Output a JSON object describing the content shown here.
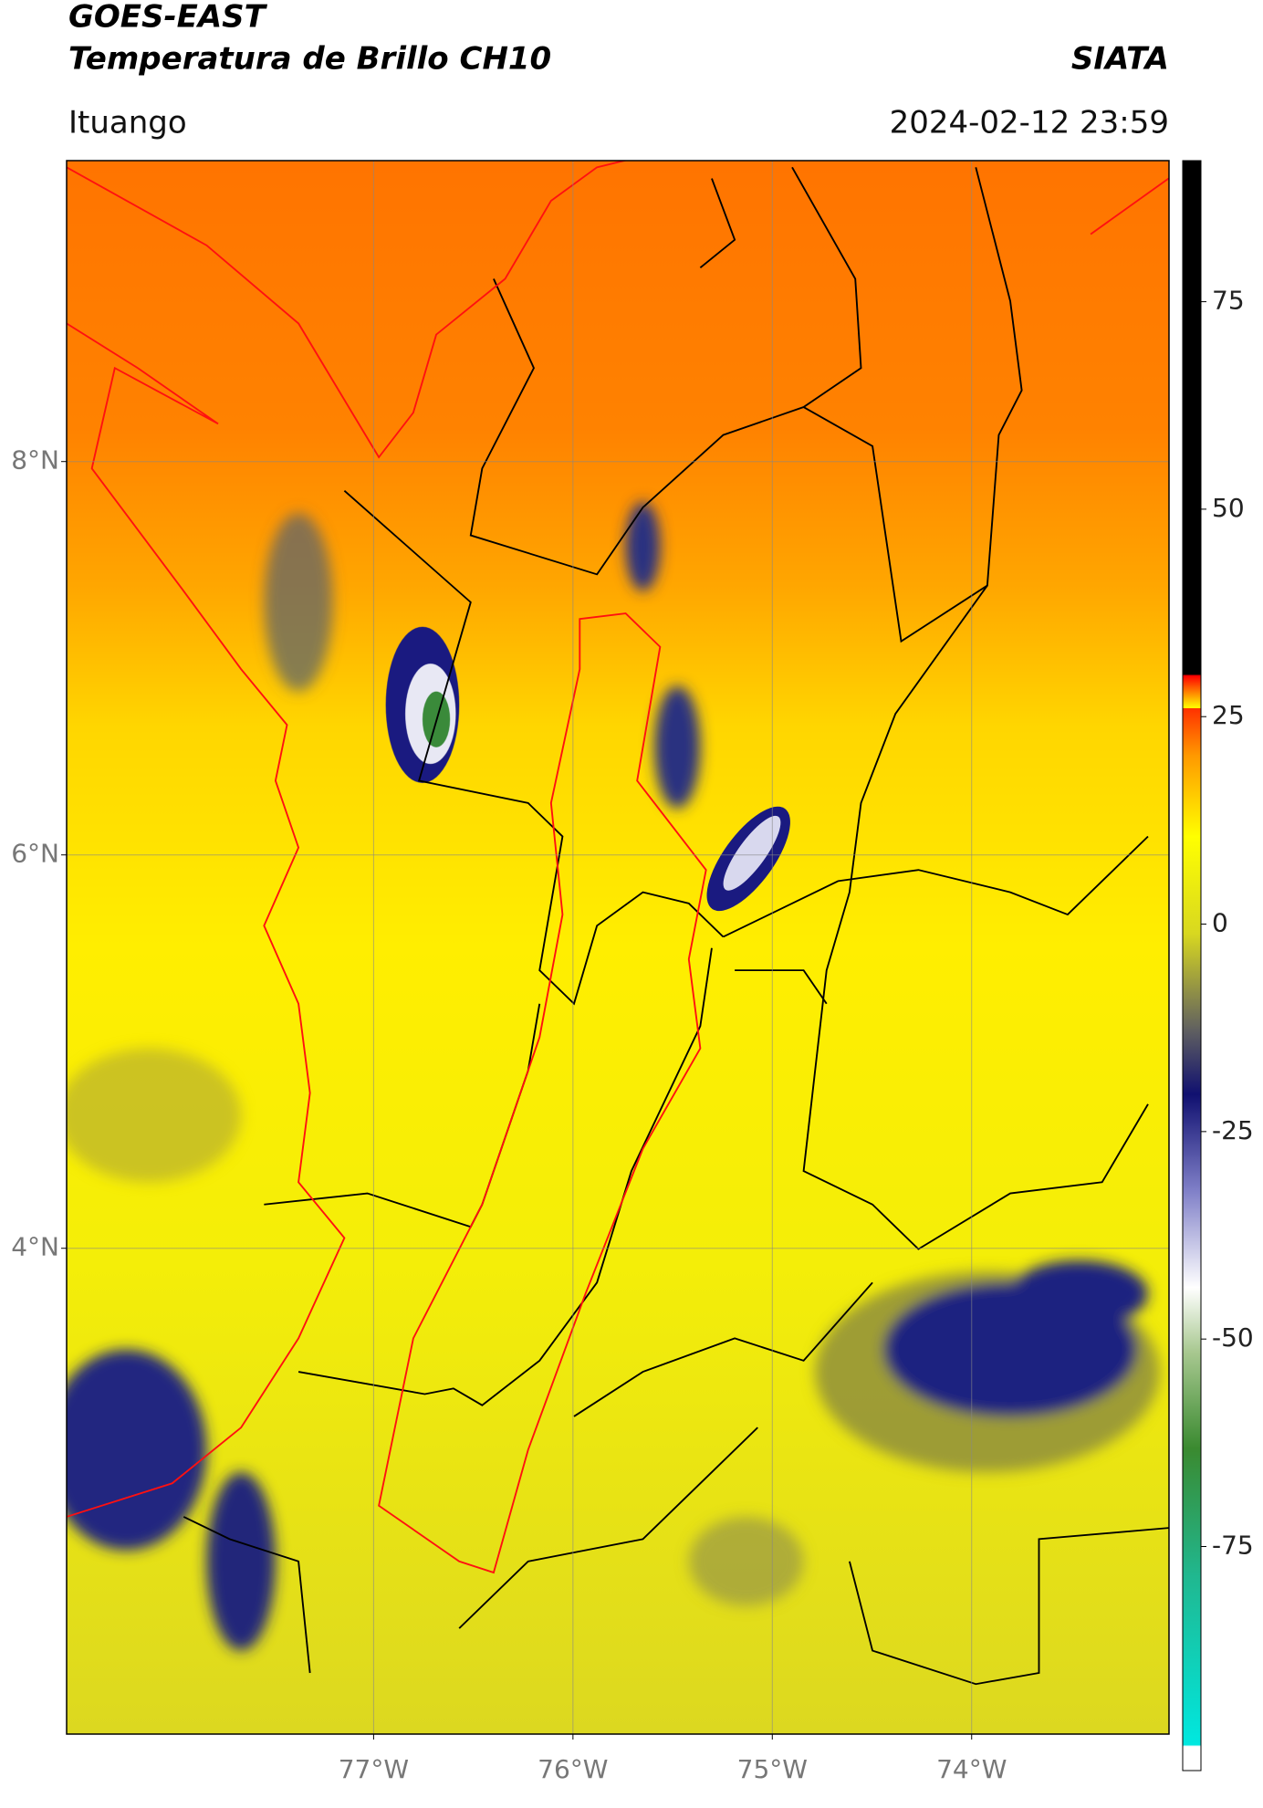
{
  "header": {
    "title_line1": "GOES-EAST",
    "title_line2": "Temperatura de Brillo CH10",
    "source": "SIATA",
    "location": "Ituango",
    "datetime": "2024-02-12 23:59"
  },
  "map": {
    "lon_range": [
      -78.54,
      -73.01
    ],
    "lat_range": [
      1.53,
      9.53
    ],
    "lat_ticks": [
      {
        "value": 8,
        "label": "8°N"
      },
      {
        "value": 6,
        "label": "6°N"
      },
      {
        "value": 4,
        "label": "4°N"
      }
    ],
    "lon_ticks": [
      {
        "value": -77,
        "label": "77°W"
      },
      {
        "value": -76,
        "label": "76°W"
      },
      {
        "value": -75,
        "label": "75°W"
      },
      {
        "value": -74,
        "label": "74°W"
      }
    ]
  },
  "colorbar": {
    "range": [
      -102,
      92
    ],
    "ticks": [
      75,
      50,
      25,
      0,
      -25,
      -50,
      -75
    ]
  }
}
